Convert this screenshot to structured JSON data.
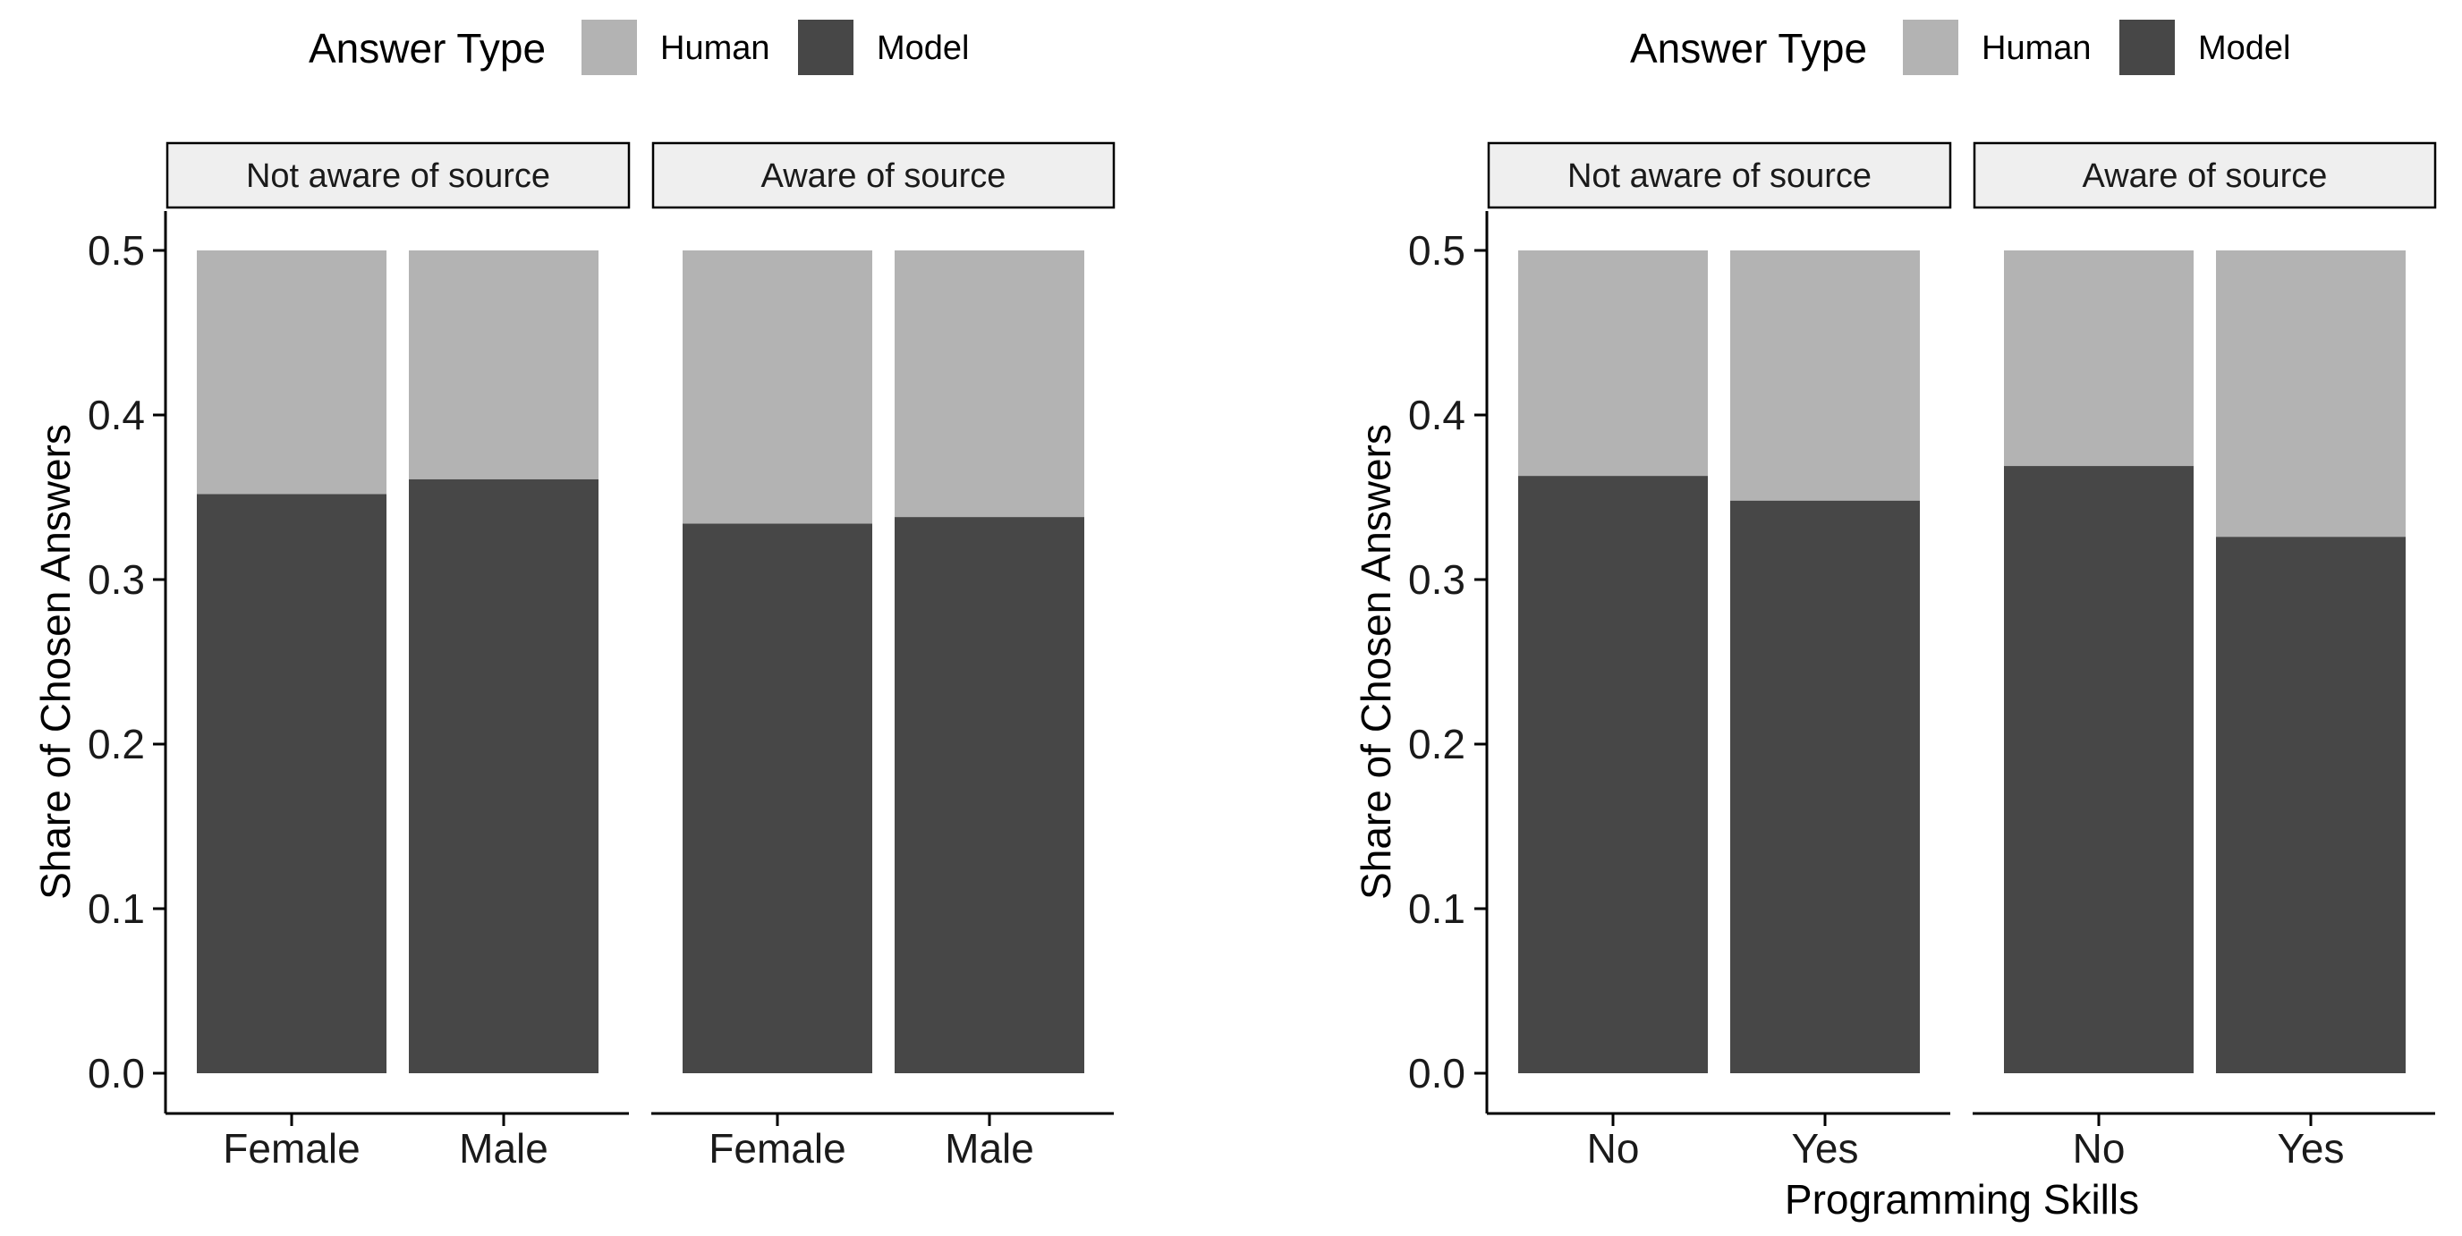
{
  "chart_data": [
    {
      "type": "bar",
      "stacked": true,
      "legend": {
        "title": "Answer Type",
        "placement": "top",
        "entries": [
          {
            "label": "Human",
            "color": "#b3b3b3"
          },
          {
            "label": "Model",
            "color": "#474747"
          }
        ]
      },
      "ylabel": "Share of Chosen Answers",
      "xlabel": "",
      "ylim": [
        0,
        0.5
      ],
      "yticks": [
        "0.0",
        "0.1",
        "0.2",
        "0.3",
        "0.4",
        "0.5"
      ],
      "grid": false,
      "facets": [
        {
          "label": "Not aware of source",
          "categories": [
            "Female",
            "Male"
          ],
          "series": [
            {
              "name": "Model",
              "values": [
                0.352,
                0.361
              ]
            },
            {
              "name": "Human",
              "values": [
                0.148,
                0.139
              ]
            }
          ]
        },
        {
          "label": "Aware of source",
          "categories": [
            "Female",
            "Male"
          ],
          "series": [
            {
              "name": "Model",
              "values": [
                0.334,
                0.338
              ]
            },
            {
              "name": "Human",
              "values": [
                0.166,
                0.162
              ]
            }
          ]
        }
      ]
    },
    {
      "type": "bar",
      "stacked": true,
      "legend": {
        "title": "Answer Type",
        "placement": "top",
        "entries": [
          {
            "label": "Human",
            "color": "#b3b3b3"
          },
          {
            "label": "Model",
            "color": "#474747"
          }
        ]
      },
      "ylabel": "Share of Chosen Answers",
      "xlabel": "Programming Skills",
      "ylim": [
        0,
        0.5
      ],
      "yticks": [
        "0.0",
        "0.1",
        "0.2",
        "0.3",
        "0.4",
        "0.5"
      ],
      "grid": false,
      "facets": [
        {
          "label": "Not aware of source",
          "categories": [
            "No",
            "Yes"
          ],
          "series": [
            {
              "name": "Model",
              "values": [
                0.363,
                0.348
              ]
            },
            {
              "name": "Human",
              "values": [
                0.137,
                0.152
              ]
            }
          ]
        },
        {
          "label": "Aware of source",
          "categories": [
            "No",
            "Yes"
          ],
          "series": [
            {
              "name": "Model",
              "values": [
                0.369,
                0.326
              ]
            },
            {
              "name": "Human",
              "values": [
                0.131,
                0.174
              ]
            }
          ]
        }
      ]
    }
  ]
}
